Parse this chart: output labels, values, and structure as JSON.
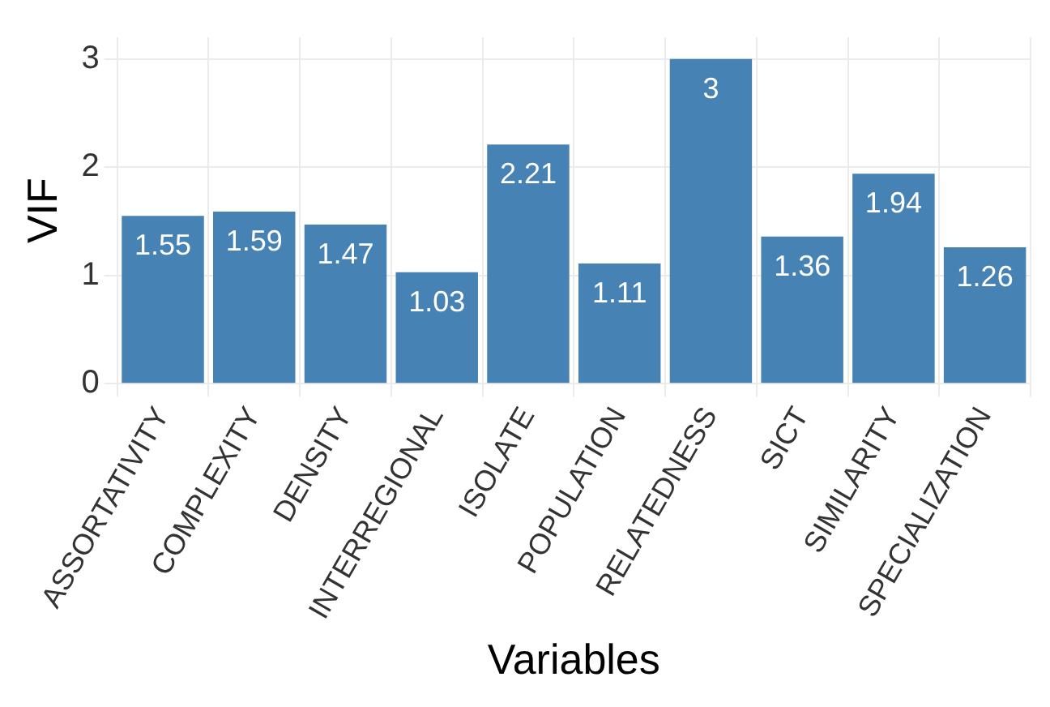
{
  "chart_data": {
    "type": "bar",
    "xlabel": "Variables",
    "ylabel": "VIF",
    "categories": [
      "ASSORTATIVITY",
      "COMPLEXITY",
      "DENSITY",
      "INTERREGIONAL",
      "ISOLATE",
      "POPULATION",
      "RELATEDNESS",
      "SICT",
      "SIMILARITY",
      "SPECIALIZATION"
    ],
    "values": [
      1.55,
      1.59,
      1.47,
      1.03,
      2.21,
      1.11,
      3,
      1.36,
      1.94,
      1.26
    ],
    "color": "#4682b4",
    "ylim": [
      0,
      3.2
    ],
    "yticks": [
      0,
      1,
      2,
      3
    ],
    "grid": true,
    "data_labels": true,
    "legend": false
  }
}
